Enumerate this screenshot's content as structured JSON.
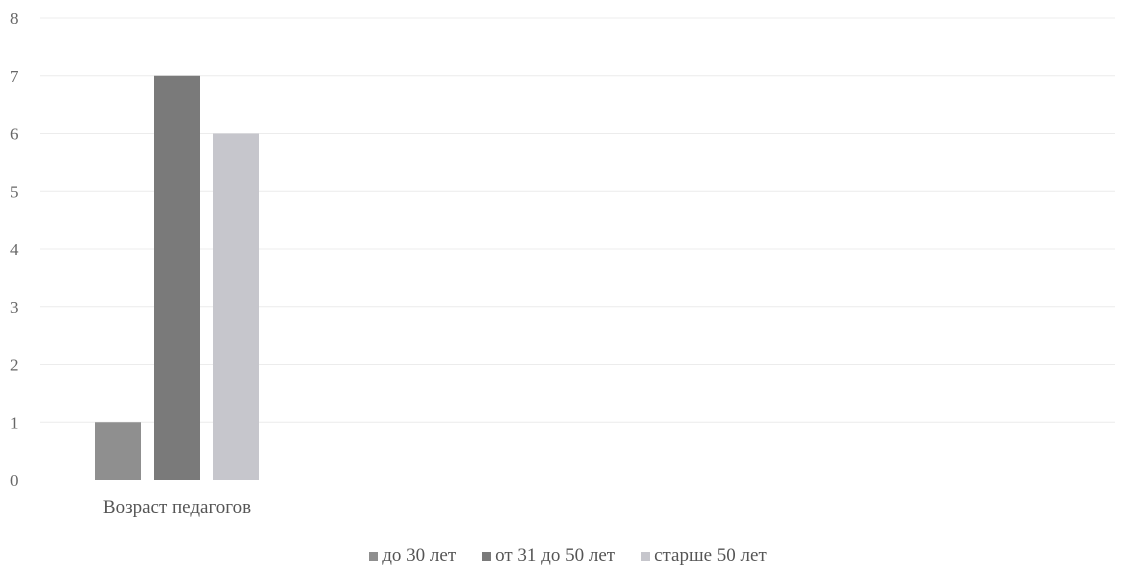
{
  "chart_data": {
    "type": "bar",
    "categories": [
      "Возраст педагогов"
    ],
    "series": [
      {
        "name": "до 30 лет",
        "values": [
          1
        ],
        "color": "#8f8f8f"
      },
      {
        "name": "от 31 до 50 лет",
        "values": [
          7
        ],
        "color": "#7a7a7a"
      },
      {
        "name": "старше 50 лет",
        "values": [
          6
        ],
        "color": "#c6c6cc"
      }
    ],
    "ylim": [
      0,
      8
    ],
    "yticks": [
      "0",
      "1",
      "2",
      "3",
      "4",
      "5",
      "6",
      "7",
      "8"
    ],
    "grid": true,
    "legend": "bottom"
  }
}
